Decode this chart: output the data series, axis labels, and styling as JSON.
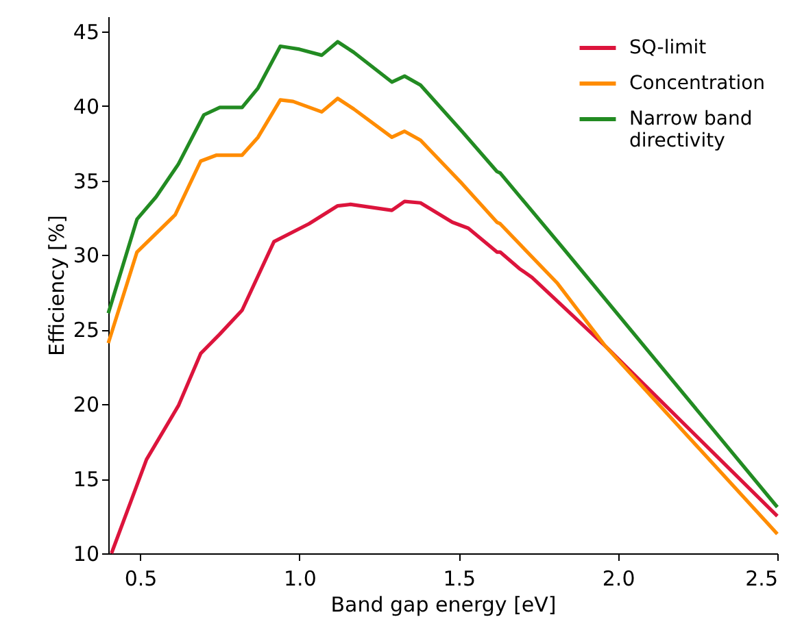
{
  "chart_data": {
    "type": "line",
    "xlabel": "Band gap energy [eV]",
    "ylabel": "Efficiency [%]",
    "xlim": [
      0.4,
      2.5
    ],
    "xticks": [
      0.5,
      {
        "value": 1,
        "label": "1.0"
      },
      1.5,
      {
        "value": 2,
        "label": "2.0"
      },
      2.5
    ],
    "ylim": [
      10,
      46
    ],
    "yticks": [
      10,
      15,
      20,
      25,
      30,
      35,
      40,
      45
    ],
    "grid": false,
    "legend": "top right",
    "line_style": "solid",
    "marker": "none",
    "series": [
      {
        "name": "SQ-limit",
        "color": "#dc143c",
        "x": [
          0.41,
          0.52,
          0.62,
          0.69,
          0.75,
          0.82,
          0.92,
          1.03,
          1.12,
          1.16,
          1.29,
          1.33,
          1.38,
          1.48,
          1.53,
          1.62,
          1.63,
          1.69,
          1.73,
          1.96,
          2.5
        ],
        "values": [
          10,
          16.3,
          19.9,
          23.4,
          24.7,
          26.3,
          30.9,
          32.1,
          33.3,
          33.4,
          33.0,
          33.6,
          33.5,
          32.2,
          31.8,
          30.2,
          30.2,
          29.1,
          28.5,
          23.9,
          12.5
        ]
      },
      {
        "name": "Concentration",
        "color": "#ff8c00",
        "x": [
          0.4,
          0.49,
          0.61,
          0.69,
          0.74,
          0.82,
          0.87,
          0.94,
          0.98,
          1.07,
          1.12,
          1.17,
          1.29,
          1.33,
          1.38,
          1.51,
          1.62,
          1.63,
          1.81,
          1.96,
          2.5
        ],
        "values": [
          24.1,
          30.2,
          32.7,
          36.3,
          36.7,
          36.7,
          37.9,
          40.4,
          40.3,
          39.6,
          40.5,
          39.8,
          37.9,
          38.3,
          37.7,
          34.8,
          32.2,
          32.1,
          28.1,
          23.9,
          11.3
        ]
      },
      {
        "name": "Narrow band\n directivity",
        "color": "#228b22",
        "x": [
          0.4,
          0.49,
          0.55,
          0.62,
          0.7,
          0.75,
          0.82,
          0.87,
          0.94,
          1.0,
          1.07,
          1.12,
          1.17,
          1.29,
          1.33,
          1.38,
          1.51,
          1.62,
          1.63,
          1.83,
          2.5
        ],
        "values": [
          26.1,
          32.4,
          33.9,
          36.1,
          39.4,
          39.9,
          39.9,
          41.2,
          44.0,
          43.8,
          43.4,
          44.3,
          43.6,
          41.6,
          42.0,
          41.4,
          38.3,
          35.6,
          35.5,
          30.4,
          13.1
        ]
      }
    ]
  }
}
